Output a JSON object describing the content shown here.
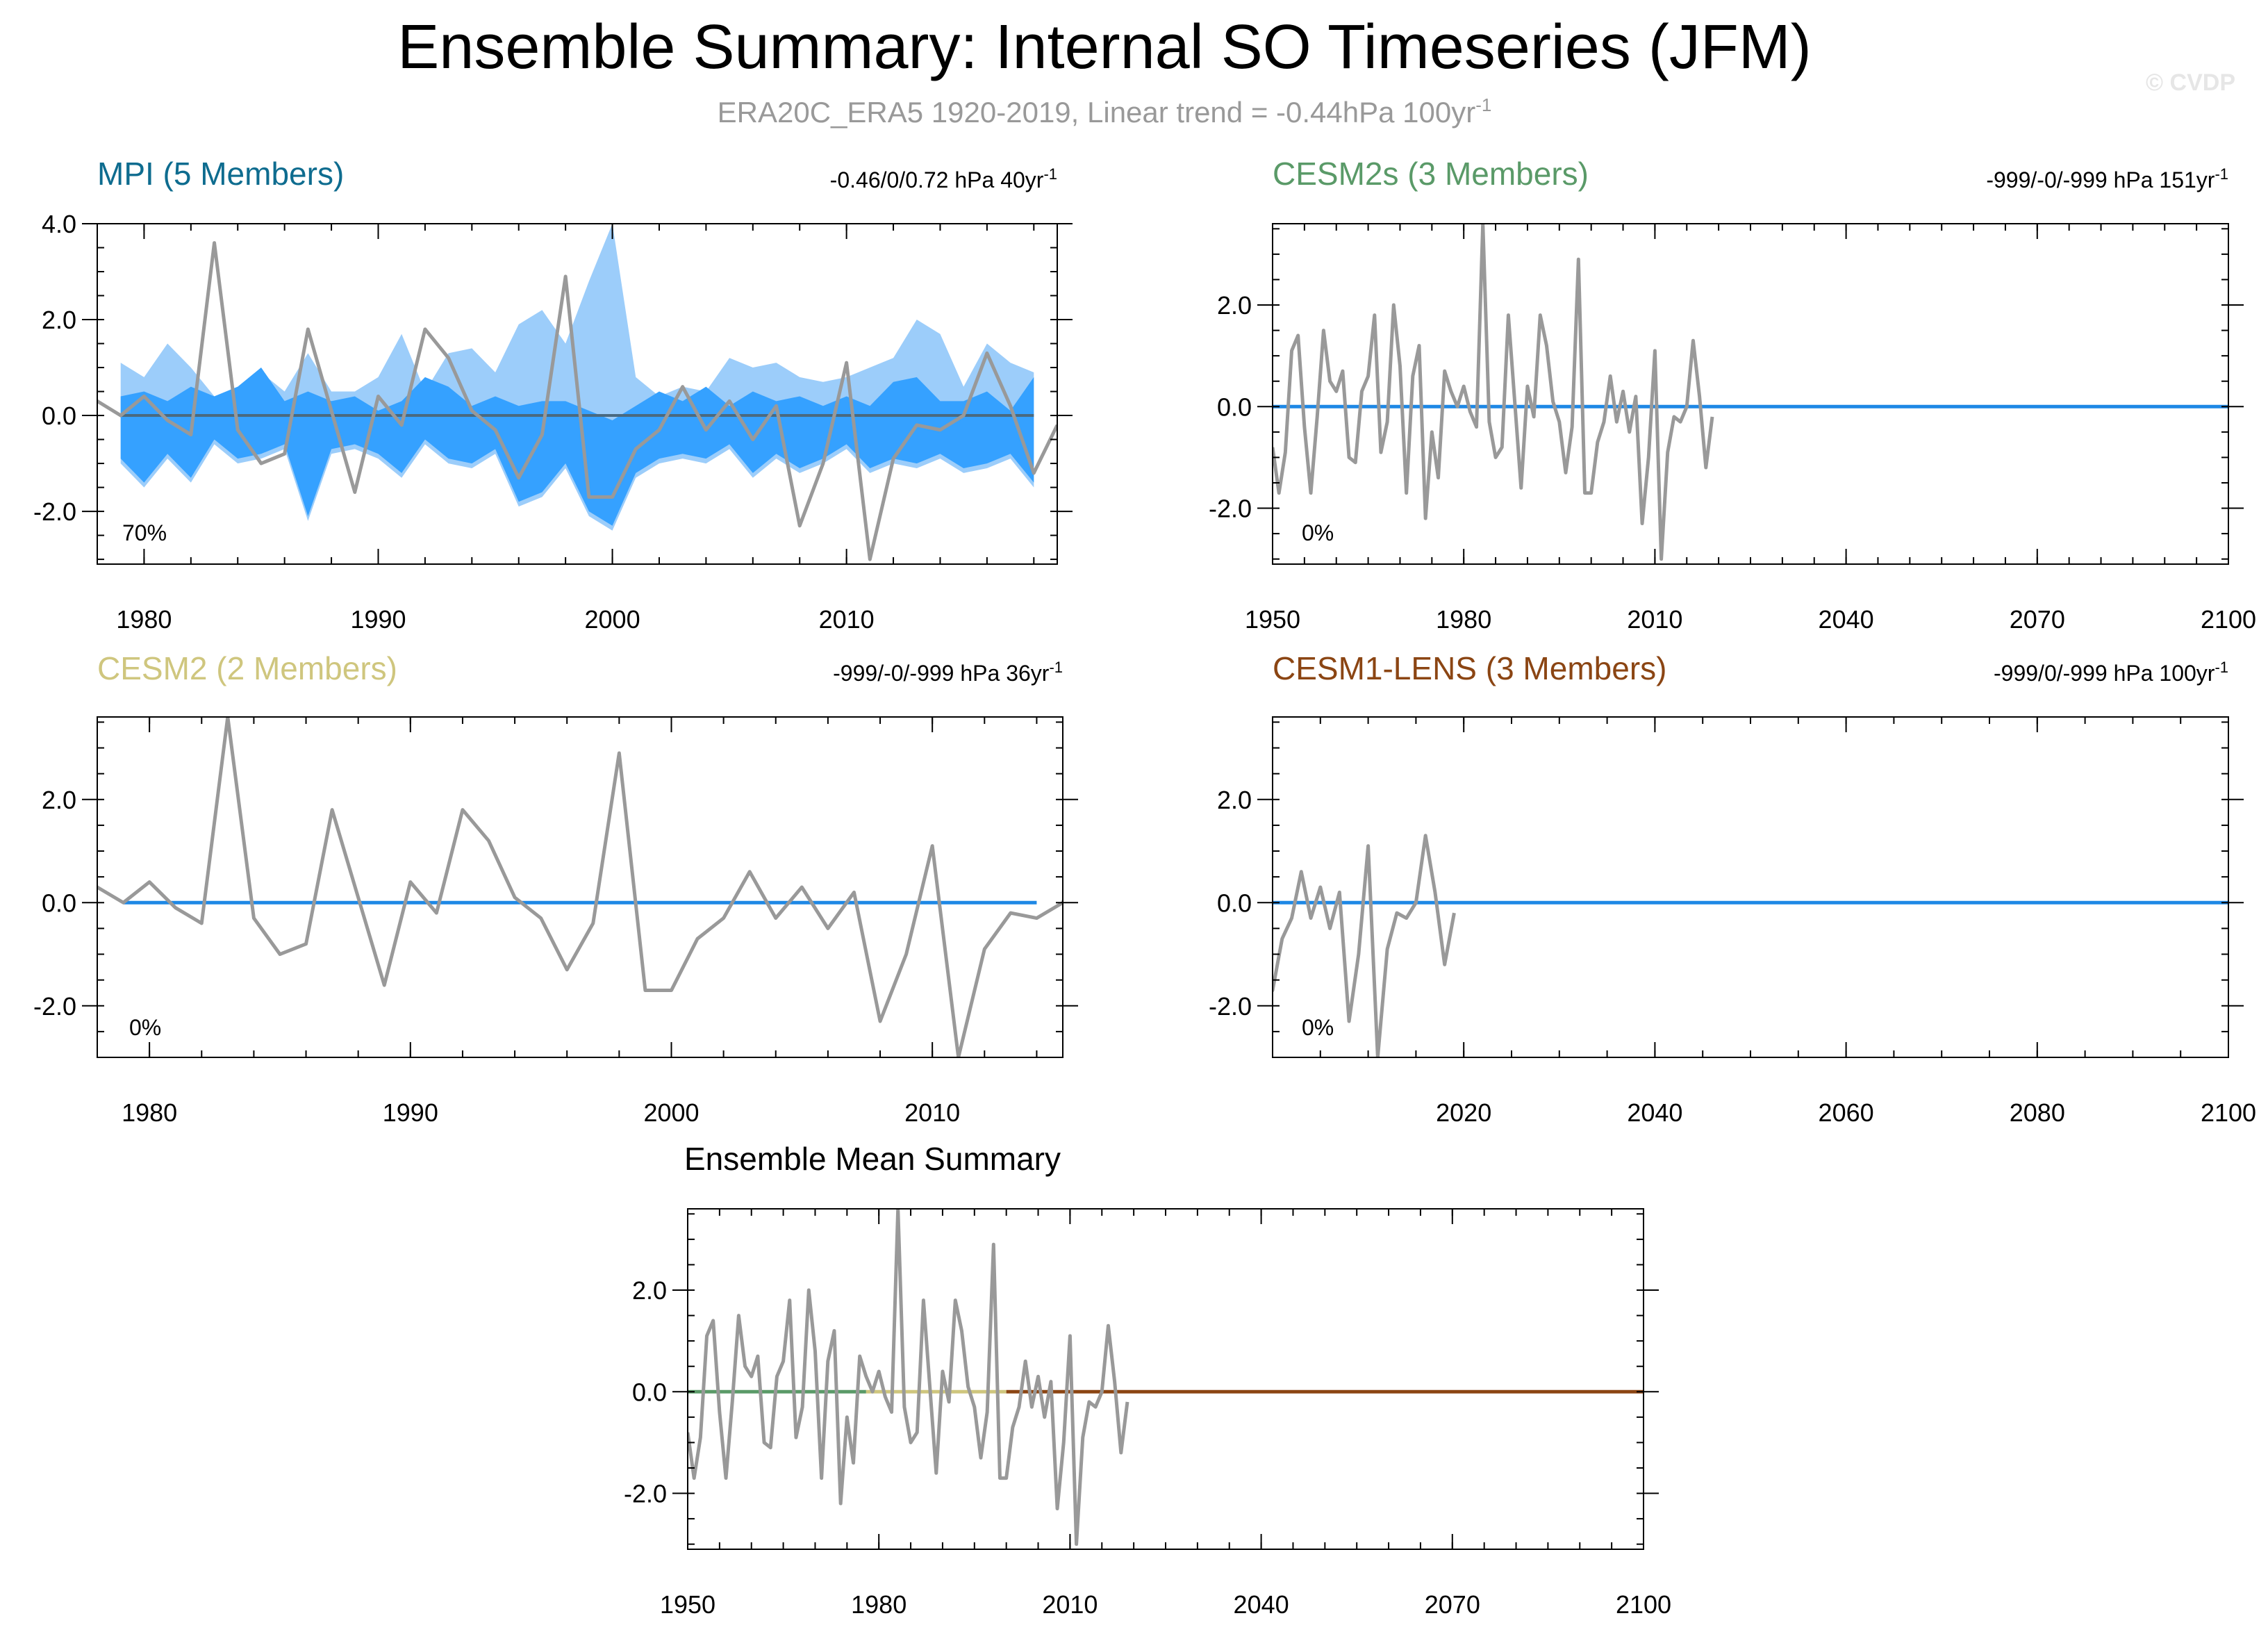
{
  "chart_data": {
    "type": "line",
    "title": "Ensemble Summary: Internal SO Timeseries (JFM)",
    "subtitle": {
      "main": "ERA20C_ERA5 1920-2019, Linear trend = -0.44hPa 100yr",
      "sup": "-1"
    },
    "watermark": "© CVDP",
    "colors": {
      "obs": "#999999",
      "mpi": "#0e6c8f",
      "cesm2s": "#5a9a68",
      "cesm2": "#cfc67e",
      "cesm1": "#8b4513",
      "band_outer": "#9ccdfa",
      "band_inner": "#35a1ff",
      "ens_line": "#1e88e5"
    },
    "obs_years": [
      1950,
      1951,
      1952,
      1953,
      1954,
      1955,
      1956,
      1957,
      1958,
      1959,
      1960,
      1961,
      1962,
      1963,
      1964,
      1965,
      1966,
      1967,
      1968,
      1969,
      1970,
      1971,
      1972,
      1973,
      1974,
      1975,
      1976,
      1977,
      1978,
      1979,
      1980,
      1981,
      1982,
      1983,
      1984,
      1985,
      1986,
      1987,
      1988,
      1989,
      1990,
      1991,
      1992,
      1993,
      1994,
      1995,
      1996,
      1997,
      1998,
      1999,
      2000,
      2001,
      2002,
      2003,
      2004,
      2005,
      2006,
      2007,
      2008,
      2009,
      2010,
      2011,
      2012,
      2013,
      2014,
      2015,
      2016,
      2017,
      2018,
      2019
    ],
    "obs_values": [
      -0.8,
      -1.7,
      -0.9,
      1.1,
      1.4,
      -0.4,
      -1.7,
      -0.2,
      1.5,
      0.5,
      0.3,
      0.7,
      -1.0,
      -1.1,
      0.3,
      0.6,
      1.8,
      -0.9,
      -0.3,
      2.0,
      0.8,
      -1.7,
      0.6,
      1.2,
      -2.2,
      -0.5,
      -1.4,
      0.7,
      0.3,
      0.0,
      0.4,
      -0.1,
      -0.4,
      3.6,
      -0.3,
      -1.0,
      -0.8,
      1.8,
      0.1,
      -1.6,
      0.4,
      -0.2,
      1.8,
      1.2,
      0.1,
      -0.3,
      -1.3,
      -0.4,
      2.9,
      -1.7,
      -1.7,
      -0.7,
      -0.3,
      0.6,
      -0.3,
      0.3,
      -0.5,
      0.2,
      -2.3,
      -1.0,
      1.1,
      -3.0,
      -0.9,
      -0.2,
      -0.3,
      0.0,
      1.3,
      0.2,
      -1.2,
      -0.2
    ],
    "panels": [
      {
        "id": "mpi",
        "title": "MPI (5 Members)",
        "trend": "-0.46/0/0.72 hPa 40yr",
        "trend_sup": "-1",
        "pct": "70%",
        "x_min": 1978,
        "x_max": 2019,
        "y_min": -3.1,
        "y_max": 4.0,
        "x_ticks": [
          1980,
          1990,
          2000,
          2010
        ],
        "y_ticks": [
          -2.0,
          0.0,
          2.0,
          4.0
        ],
        "y_tick_labels": [
          "-2.0",
          "0.0",
          "2.0",
          "4.0"
        ],
        "ens_range": [
          1979,
          2018
        ],
        "band_years": [
          1979,
          1980,
          1981,
          1982,
          1983,
          1984,
          1985,
          1986,
          1987,
          1988,
          1989,
          1990,
          1991,
          1992,
          1993,
          1994,
          1995,
          1996,
          1997,
          1998,
          1999,
          2000,
          2001,
          2002,
          2003,
          2004,
          2005,
          2006,
          2007,
          2008,
          2009,
          2010,
          2011,
          2012,
          2013,
          2014,
          2015,
          2016,
          2017,
          2018
        ],
        "band_outer_hi": [
          1.1,
          0.8,
          1.5,
          1.0,
          0.4,
          0.6,
          0.9,
          0.5,
          1.3,
          0.5,
          0.5,
          0.8,
          1.7,
          0.5,
          1.3,
          1.4,
          0.9,
          1.9,
          2.2,
          1.5,
          2.8,
          4.0,
          0.8,
          0.4,
          0.6,
          0.5,
          1.2,
          1.0,
          1.1,
          0.8,
          0.7,
          0.8,
          1.0,
          1.2,
          2.0,
          1.7,
          0.6,
          1.5,
          1.1,
          0.9
        ],
        "band_inner_hi": [
          0.4,
          0.5,
          0.3,
          0.6,
          0.4,
          0.6,
          1.0,
          0.3,
          0.5,
          0.3,
          0.4,
          0.1,
          0.3,
          0.8,
          0.6,
          0.2,
          0.4,
          0.2,
          0.3,
          0.3,
          0.1,
          -0.1,
          0.2,
          0.5,
          0.3,
          0.6,
          0.2,
          0.5,
          0.3,
          0.4,
          0.2,
          0.4,
          0.2,
          0.7,
          0.8,
          0.3,
          0.3,
          0.5,
          0.1,
          0.8
        ],
        "band_inner_lo": [
          -0.9,
          -1.4,
          -0.8,
          -1.3,
          -0.5,
          -0.9,
          -0.8,
          -0.6,
          -2.1,
          -0.7,
          -0.6,
          -0.8,
          -1.2,
          -0.5,
          -0.9,
          -1.0,
          -0.7,
          -1.8,
          -1.6,
          -1.0,
          -2.0,
          -2.3,
          -1.2,
          -0.9,
          -0.8,
          -0.9,
          -0.6,
          -1.2,
          -0.8,
          -1.1,
          -0.9,
          -0.6,
          -1.1,
          -0.9,
          -1.0,
          -0.8,
          -1.1,
          -1.0,
          -0.8,
          -1.4
        ],
        "band_outer_lo": [
          -1.0,
          -1.5,
          -0.9,
          -1.4,
          -0.6,
          -1.0,
          -0.9,
          -0.7,
          -2.2,
          -0.8,
          -0.7,
          -0.9,
          -1.3,
          -0.6,
          -1.0,
          -1.1,
          -0.8,
          -1.9,
          -1.7,
          -1.1,
          -2.1,
          -2.4,
          -1.3,
          -1.0,
          -0.9,
          -1.0,
          -0.7,
          -1.3,
          -0.9,
          -1.2,
          -1.0,
          -0.7,
          -1.2,
          -1.0,
          -1.1,
          -0.9,
          -1.2,
          -1.1,
          -0.9,
          -1.5
        ]
      },
      {
        "id": "cesm2s",
        "title": "CESM2s (3 Members)",
        "trend": "-999/-0/-999 hPa 151yr",
        "trend_sup": "-1",
        "pct": "0%",
        "x_min": 1950,
        "x_max": 2100,
        "y_min": -3.1,
        "y_max": 3.6,
        "x_ticks": [
          1950,
          1980,
          2010,
          2040,
          2070,
          2100
        ],
        "y_ticks": [
          -2.0,
          0.0,
          2.0
        ],
        "y_tick_labels": [
          "-2.0",
          "0.0",
          "2.0"
        ],
        "ens_range": [
          1950,
          2100
        ]
      },
      {
        "id": "cesm2",
        "title": "CESM2 (2 Members)",
        "trend": "-999/-0/-999 hPa 36yr",
        "trend_sup": "-1",
        "pct": "0%",
        "x_min": 1978,
        "x_max": 2015,
        "y_min": -3.0,
        "y_max": 3.6,
        "x_ticks": [
          1980,
          1990,
          2000,
          2010
        ],
        "y_ticks": [
          -2.0,
          0.0,
          2.0
        ],
        "y_tick_labels": [
          "-2.0",
          "0.0",
          "2.0"
        ],
        "ens_range": [
          1979,
          2014
        ]
      },
      {
        "id": "cesm1",
        "title": "CESM1-LENS (3 Members)",
        "trend": "-999/0/-999 hPa 100yr",
        "trend_sup": "-1",
        "pct": "0%",
        "x_min": 2000,
        "x_max": 2100,
        "y_min": -3.0,
        "y_max": 3.6,
        "x_ticks": [
          2020,
          2040,
          2060,
          2080,
          2100
        ],
        "y_ticks": [
          -2.0,
          0.0,
          2.0
        ],
        "y_tick_labels": [
          "-2.0",
          "0.0",
          "2.0"
        ],
        "ens_range": [
          2000,
          2100
        ]
      },
      {
        "id": "ensmean",
        "title": "Ensemble Mean Summary",
        "x_min": 1950,
        "x_max": 2100,
        "y_min": -3.1,
        "y_max": 3.6,
        "x_ticks": [
          1950,
          1980,
          2010,
          2040,
          2070,
          2100
        ],
        "y_ticks": [
          -2.0,
          0.0,
          2.0
        ],
        "y_tick_labels": [
          "-2.0",
          "0.0",
          "2.0"
        ],
        "segments": [
          {
            "from": 1950,
            "to": 1978,
            "color_key": "cesm2s"
          },
          {
            "from": 1978,
            "to": 2000,
            "color_key": "cesm2"
          },
          {
            "from": 2000,
            "to": 2100,
            "color_key": "cesm1"
          }
        ]
      }
    ]
  }
}
